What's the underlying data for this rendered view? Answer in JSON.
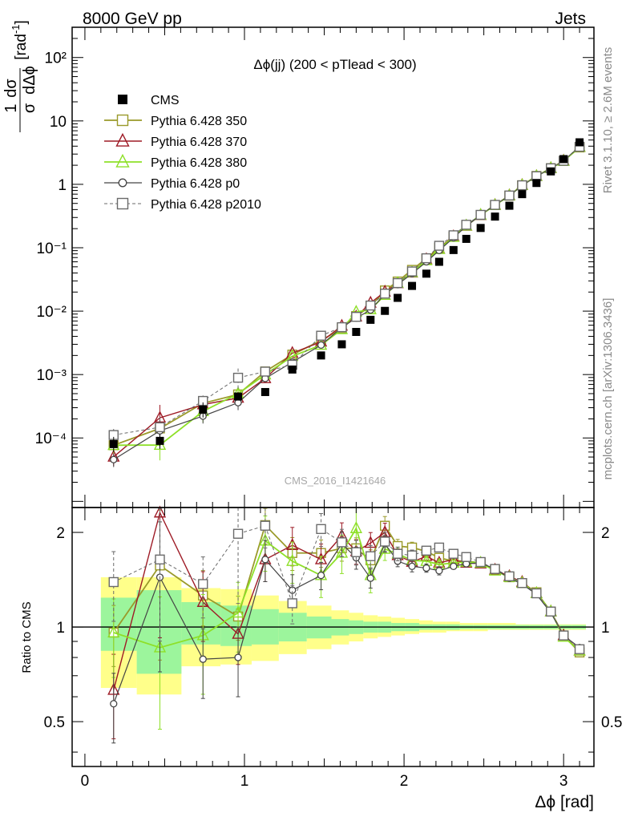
{
  "header": {
    "left": "8000 GeV pp",
    "right": "Jets"
  },
  "side_text": {
    "rivet": "Rivet 3.1.10, ≥ 2.6M events",
    "mcplots": "mcplots.cern.ch [arXiv:1306.3436]"
  },
  "chart_data": {
    "type": "scatter",
    "title": "Δϕ(jj) (200 < pTlead <  300)",
    "watermark": "CMS_2016_I1421646",
    "xlabel": "Δϕ [rad]",
    "ylabel": "1/σ dσ/dΔϕ [rad⁻¹]",
    "ratio_ylabel": "Ratio to CMS",
    "xlim": [
      -0.08,
      3.19
    ],
    "ylim": [
      8e-06,
      300
    ],
    "ratio_ylim": [
      0.36,
      2.4
    ],
    "log_y": true,
    "x_ticks": [
      "0",
      "1",
      "2",
      "3"
    ],
    "y_ticks": [
      "10⁻⁴",
      "10⁻³",
      "10⁻²",
      "10⁻¹",
      "1",
      "10",
      "10²"
    ],
    "ratio_ticks": [
      "0.5",
      "1",
      "2"
    ],
    "legend_position": "top-left",
    "x": [
      0.18,
      0.47,
      0.74,
      0.96,
      1.13,
      1.3,
      1.48,
      1.61,
      1.7,
      1.79,
      1.88,
      1.96,
      2.05,
      2.14,
      2.22,
      2.31,
      2.39,
      2.48,
      2.57,
      2.66,
      2.74,
      2.83,
      2.92,
      3.0,
      3.1
    ],
    "data": {
      "name": "CMS",
      "values": [
        8e-05,
        9e-05,
        0.00028,
        0.00045,
        0.00053,
        0.0012,
        0.002,
        0.003,
        0.0047,
        0.0073,
        0.0101,
        0.0162,
        0.025,
        0.039,
        0.06,
        0.092,
        0.138,
        0.205,
        0.31,
        0.46,
        0.7,
        1.05,
        1.6,
        2.5,
        4.6
      ],
      "stat_band": [
        [
          0.84,
          1.24
        ],
        [
          0.71,
          1.31
        ],
        [
          0.88,
          1.2
        ],
        [
          0.87,
          1.17
        ],
        [
          0.88,
          1.14
        ],
        [
          0.9,
          1.11
        ],
        [
          0.92,
          1.08
        ],
        [
          0.94,
          1.06
        ],
        [
          0.95,
          1.05
        ],
        [
          0.96,
          1.04
        ],
        [
          0.96,
          1.04
        ],
        [
          0.97,
          1.03
        ],
        [
          0.97,
          1.03
        ],
        [
          0.98,
          1.02
        ],
        [
          0.98,
          1.02
        ],
        [
          0.98,
          1.02
        ],
        [
          0.985,
          1.015
        ],
        [
          0.985,
          1.015
        ],
        [
          0.985,
          1.015
        ],
        [
          0.985,
          1.015
        ],
        [
          0.985,
          1.015
        ],
        [
          0.985,
          1.015
        ],
        [
          0.985,
          1.015
        ],
        [
          0.985,
          1.015
        ],
        [
          0.985,
          1.015
        ]
      ],
      "total_band": [
        [
          0.64,
          1.44
        ],
        [
          0.61,
          1.44
        ],
        [
          0.75,
          1.33
        ],
        [
          0.76,
          1.32
        ],
        [
          0.78,
          1.26
        ],
        [
          0.82,
          1.21
        ],
        [
          0.85,
          1.17
        ],
        [
          0.88,
          1.13
        ],
        [
          0.9,
          1.11
        ],
        [
          0.92,
          1.09
        ],
        [
          0.93,
          1.08
        ],
        [
          0.94,
          1.07
        ],
        [
          0.95,
          1.06
        ],
        [
          0.96,
          1.05
        ],
        [
          0.96,
          1.04
        ],
        [
          0.97,
          1.04
        ],
        [
          0.97,
          1.03
        ],
        [
          0.97,
          1.03
        ],
        [
          0.98,
          1.03
        ],
        [
          0.98,
          1.03
        ],
        [
          0.98,
          1.02
        ],
        [
          0.98,
          1.02
        ],
        [
          0.98,
          1.02
        ],
        [
          0.98,
          1.02
        ],
        [
          0.98,
          1.02
        ]
      ]
    },
    "series": [
      {
        "name": "Pythia 6.428 350",
        "color": "#9a9a2a",
        "marker": "square-open",
        "dashed": false,
        "ratio": [
          0.96,
          1.57,
          1.26,
          1.08,
          2.11,
          1.72,
          1.72,
          1.78,
          1.78,
          1.63,
          2.1,
          1.81,
          1.79,
          1.74,
          1.66,
          1.62,
          1.62,
          1.6,
          1.52,
          1.44,
          1.38,
          1.29,
          1.12,
          0.94,
          0.83
        ],
        "ratio_err": [
          0.22,
          0.5,
          0.2,
          0.16,
          0.13,
          0.12,
          0.1,
          0.09,
          0.08,
          0.08,
          0.07,
          0.05,
          0.04,
          0.03,
          0.03,
          0.02,
          0.02,
          0.02,
          0.02,
          0.02,
          0.02,
          0.02,
          0.02,
          0.02,
          0.02
        ]
      },
      {
        "name": "Pythia 6.428 370",
        "color": "#9e1b26",
        "marker": "triangle-open",
        "dashed": false,
        "ratio": [
          0.63,
          2.31,
          1.2,
          0.95,
          1.64,
          1.82,
          1.64,
          1.95,
          1.74,
          1.85,
          2.0,
          1.69,
          1.61,
          1.68,
          1.6,
          1.64,
          1.6,
          1.59,
          1.52,
          1.45,
          1.39,
          1.28,
          1.12,
          0.94,
          0.84
        ],
        "ratio_err": [
          0.3,
          0.6,
          0.25,
          0.2,
          0.15,
          0.14,
          0.12,
          0.1,
          0.09,
          0.08,
          0.07,
          0.05,
          0.04,
          0.03,
          0.03,
          0.02,
          0.02,
          0.02,
          0.02,
          0.02,
          0.02,
          0.02,
          0.02,
          0.02,
          0.02
        ]
      },
      {
        "name": "Pythia 6.428 380",
        "color": "#8ee028",
        "marker": "triangle-open",
        "dashed": false,
        "ratio": [
          0.96,
          0.86,
          0.94,
          1.11,
          1.88,
          1.62,
          1.46,
          1.72,
          2.06,
          1.46,
          1.77,
          1.71,
          1.63,
          1.62,
          1.58,
          1.6,
          1.61,
          1.6,
          1.51,
          1.44,
          1.38,
          1.28,
          1.12,
          0.93,
          0.84
        ],
        "ratio_err": [
          0.28,
          0.45,
          0.35,
          0.25,
          0.2,
          0.15,
          0.15,
          0.14,
          0.18,
          0.12,
          0.08,
          0.05,
          0.04,
          0.03,
          0.03,
          0.02,
          0.02,
          0.02,
          0.02,
          0.02,
          0.02,
          0.02,
          0.02,
          0.02,
          0.02
        ]
      },
      {
        "name": "Pythia 6.428 p0",
        "color": "#454545",
        "marker": "circle-open",
        "dashed": false,
        "ratio": [
          0.57,
          1.44,
          0.79,
          0.8,
          1.64,
          1.31,
          1.46,
          1.84,
          1.66,
          1.43,
          1.84,
          1.62,
          1.56,
          1.54,
          1.51,
          1.56,
          1.59,
          1.6,
          1.53,
          1.43,
          1.37,
          1.27,
          1.11,
          0.94,
          0.86
        ],
        "ratio_err": [
          0.25,
          0.5,
          0.25,
          0.25,
          0.15,
          0.12,
          0.1,
          0.09,
          0.08,
          0.07,
          0.06,
          0.04,
          0.04,
          0.03,
          0.03,
          0.02,
          0.02,
          0.02,
          0.02,
          0.02,
          0.02,
          0.02,
          0.02,
          0.02,
          0.02
        ]
      },
      {
        "name": "Pythia 6.428 p2010",
        "color": "#6a6a6a",
        "marker": "square-open",
        "dashed": true,
        "ratio": [
          1.39,
          1.64,
          1.37,
          1.98,
          2.1,
          1.19,
          2.05,
          1.86,
          1.73,
          1.68,
          1.87,
          1.71,
          1.69,
          1.75,
          1.79,
          1.71,
          1.67,
          1.61,
          1.53,
          1.45,
          1.38,
          1.28,
          1.12,
          0.94,
          0.85
        ],
        "ratio_err": [
          0.25,
          0.45,
          0.22,
          0.4,
          0.15,
          0.14,
          0.12,
          0.1,
          0.09,
          0.08,
          0.07,
          0.05,
          0.04,
          0.03,
          0.03,
          0.02,
          0.02,
          0.02,
          0.02,
          0.02,
          0.02,
          0.02,
          0.02,
          0.02,
          0.02
        ]
      }
    ]
  }
}
